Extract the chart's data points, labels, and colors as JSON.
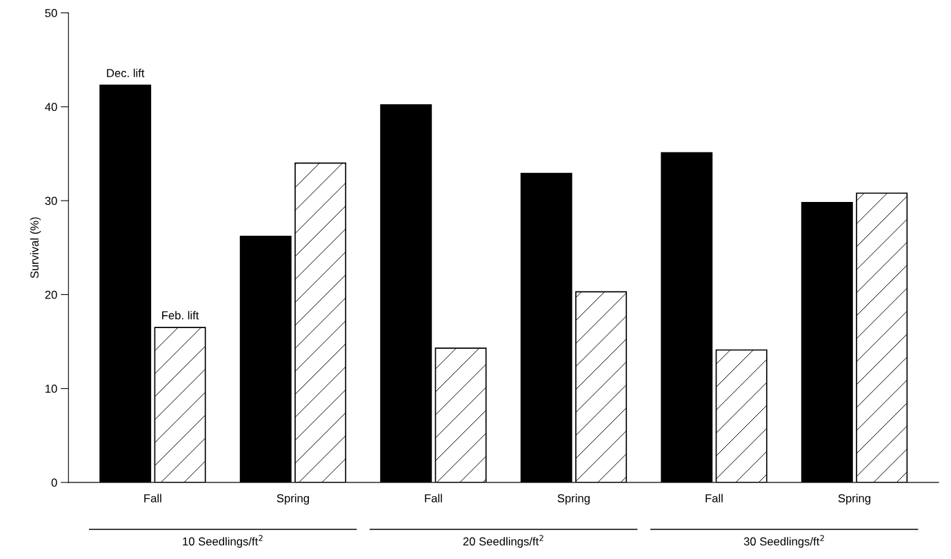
{
  "chart_data": {
    "type": "bar",
    "ylabel": "Survival (%)",
    "categories": [
      "Fall",
      "Spring",
      "Fall",
      "Spring",
      "Fall",
      "Spring"
    ],
    "series": [
      {
        "name": "Dec. lift",
        "color": "#000000",
        "values": [
          42.3,
          26.2,
          40.2,
          32.9,
          35.1,
          29.8
        ]
      },
      {
        "name": "Feb. lift",
        "color": "#ffffff",
        "values": [
          16.5,
          34.0,
          14.3,
          20.3,
          14.1,
          30.8
        ]
      }
    ],
    "annotations": [
      "10 Seedlings/ft$^{2}$",
      "20 Seedlings/ft$^{2}$",
      "30 Seedlings/ft$^{2}$"
    ],
    "ylim": [
      0,
      50
    ],
    "yticks": [
      0,
      10,
      20,
      30,
      40,
      50
    ],
    "grid": false,
    "legend": false
  }
}
